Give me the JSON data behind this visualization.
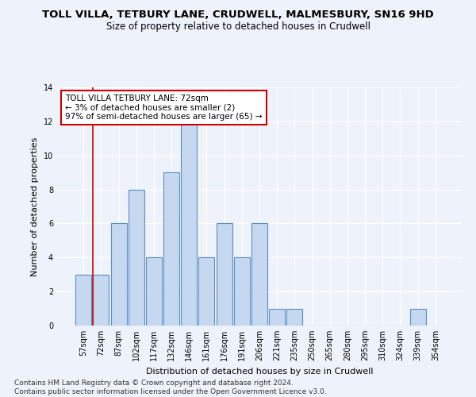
{
  "title": "TOLL VILLA, TETBURY LANE, CRUDWELL, MALMESBURY, SN16 9HD",
  "subtitle": "Size of property relative to detached houses in Crudwell",
  "xlabel": "Distribution of detached houses by size in Crudwell",
  "ylabel": "Number of detached properties",
  "categories": [
    "57sqm",
    "72sqm",
    "87sqm",
    "102sqm",
    "117sqm",
    "132sqm",
    "146sqm",
    "161sqm",
    "176sqm",
    "191sqm",
    "206sqm",
    "221sqm",
    "235sqm",
    "250sqm",
    "265sqm",
    "280sqm",
    "295sqm",
    "310sqm",
    "324sqm",
    "339sqm",
    "354sqm"
  ],
  "values": [
    3,
    3,
    6,
    8,
    4,
    9,
    12,
    4,
    6,
    4,
    6,
    1,
    1,
    0,
    0,
    0,
    0,
    0,
    0,
    1,
    0
  ],
  "bar_color": "#c5d8f0",
  "bar_edge_color": "#5a8fc2",
  "highlight_index": 1,
  "highlight_line_color": "#cc0000",
  "ylim": [
    0,
    14
  ],
  "yticks": [
    0,
    2,
    4,
    6,
    8,
    10,
    12,
    14
  ],
  "annotation_line1": "TOLL VILLA TETBURY LANE: 72sqm",
  "annotation_line2": "← 3% of detached houses are smaller (2)",
  "annotation_line3": "97% of semi-detached houses are larger (65) →",
  "annotation_box_color": "#ffffff",
  "annotation_box_edge": "#cc0000",
  "footer_line1": "Contains HM Land Registry data © Crown copyright and database right 2024.",
  "footer_line2": "Contains public sector information licensed under the Open Government Licence v3.0.",
  "background_color": "#eef2fb",
  "grid_color": "#ffffff",
  "title_fontsize": 9.5,
  "subtitle_fontsize": 8.5,
  "axis_label_fontsize": 8,
  "tick_fontsize": 7,
  "annotation_fontsize": 7.5,
  "footer_fontsize": 6.5
}
